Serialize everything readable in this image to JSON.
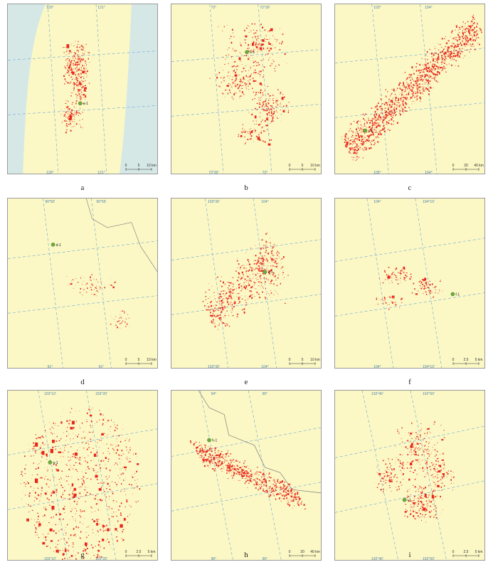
{
  "panels": [
    {
      "id": "a",
      "caption": "a",
      "scale": [
        "0",
        "5",
        "10 km"
      ],
      "site_label": "a-1",
      "ticks": [
        "120°",
        "121°",
        "120°",
        "121°"
      ],
      "lake": true,
      "density": "medium"
    },
    {
      "id": "b",
      "caption": "b",
      "scale": [
        "0",
        "5",
        "10 km"
      ],
      "site_label": "b-1",
      "ticks": [
        "72°",
        "72°30'",
        "72°30'",
        "73°"
      ],
      "lake": false,
      "density": "patchy"
    },
    {
      "id": "c",
      "caption": "c",
      "scale": [
        "0",
        "20",
        "40 km"
      ],
      "site_label": "c-1",
      "ticks": [
        "103°",
        "104°",
        "105°",
        "104°"
      ],
      "lake": false,
      "density": "dense"
    },
    {
      "id": "d",
      "caption": "d",
      "scale": [
        "0",
        "5",
        "10 km"
      ],
      "site_label": "d-1",
      "ticks": [
        "90°50'",
        "90°55'",
        "91°",
        "91°"
      ],
      "lake": false,
      "density": "sparse"
    },
    {
      "id": "e",
      "caption": "e",
      "scale": [
        "0",
        "5",
        "10 km"
      ],
      "site_label": "e-1",
      "ticks": [
        "103°30'",
        "104°",
        "103°30'",
        "104°"
      ],
      "lake": false,
      "density": "medium"
    },
    {
      "id": "f",
      "caption": "f",
      "scale": [
        "0",
        "2.5",
        "5 km"
      ],
      "site_label": "f-1",
      "ticks": [
        "104°",
        "104°10'",
        "104°",
        "104°10'"
      ],
      "lake": false,
      "density": "sparse"
    },
    {
      "id": "g",
      "caption": "g",
      "scale": [
        "0",
        "2.5",
        "5 km"
      ],
      "site_label": "g-1",
      "ticks": [
        "103°10'",
        "103°20'",
        "103°10'",
        "103°20'"
      ],
      "lake": false,
      "density": "circle"
    },
    {
      "id": "h",
      "caption": "h",
      "scale": [
        "0",
        "20",
        "40 km"
      ],
      "site_label": "h-1",
      "ticks": [
        "94°",
        "95°",
        "96°",
        "95°"
      ],
      "lake": false,
      "density": "band"
    },
    {
      "id": "i",
      "caption": "i",
      "scale": [
        "0",
        "2.5",
        "5 km"
      ],
      "site_label": "i-1",
      "ticks": [
        "102°40'",
        "102°50'",
        "102°40'",
        "102°50'"
      ],
      "lake": false,
      "density": "medium"
    }
  ],
  "colors": {
    "land": "#fbf8c5",
    "water": "#d5e8e6",
    "landslide": "#e8261a",
    "graticule": "#6ea6d6",
    "site_marker": "#6cab3a",
    "boundary": "#7a7a7a"
  }
}
